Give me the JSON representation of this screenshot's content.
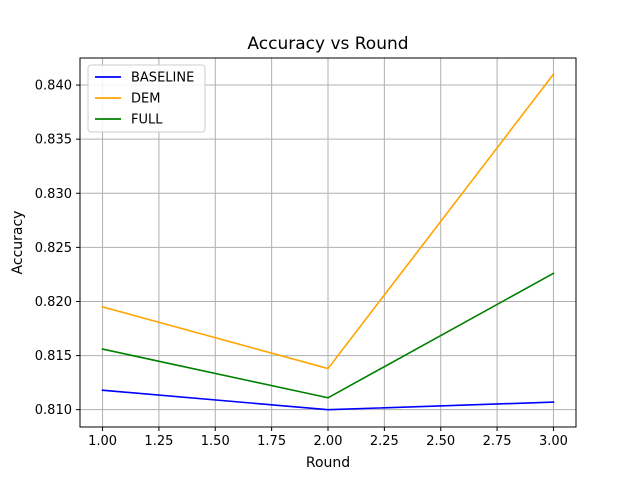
{
  "chart_data": {
    "type": "line",
    "title": "Accuracy vs Round",
    "xlabel": "Round",
    "ylabel": "Accuracy",
    "x": [
      1.0,
      2.0,
      3.0
    ],
    "series": [
      {
        "name": "BASELINE",
        "color": "#0000ff",
        "values": [
          0.8118,
          0.81,
          0.8107
        ]
      },
      {
        "name": "DEM",
        "color": "#ffa500",
        "values": [
          0.8195,
          0.8138,
          0.841
        ]
      },
      {
        "name": "FULL",
        "color": "#008000",
        "values": [
          0.8156,
          0.8111,
          0.8226
        ]
      }
    ],
    "xlim": [
      0.9,
      3.1
    ],
    "ylim": [
      0.8084,
      0.8425
    ],
    "x_ticks": [
      1.0,
      1.25,
      1.5,
      1.75,
      2.0,
      2.25,
      2.5,
      2.75,
      3.0
    ],
    "x_tick_labels": [
      "1.00",
      "1.25",
      "1.50",
      "1.75",
      "2.00",
      "2.25",
      "2.50",
      "2.75",
      "3.00"
    ],
    "y_ticks": [
      0.81,
      0.815,
      0.82,
      0.825,
      0.83,
      0.835,
      0.84
    ],
    "y_tick_labels": [
      "0.810",
      "0.815",
      "0.820",
      "0.825",
      "0.830",
      "0.835",
      "0.840"
    ],
    "grid": true,
    "legend_position": "top-left"
  }
}
